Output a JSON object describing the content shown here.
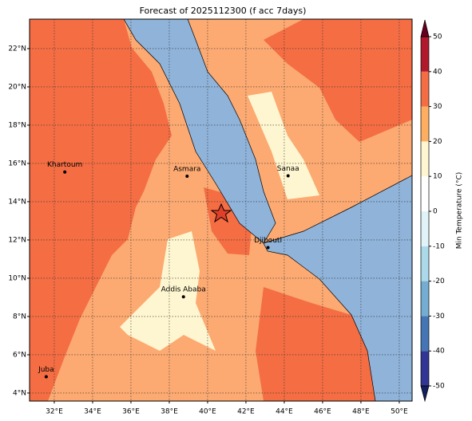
{
  "title": "Forecast of 2025112300 (f acc 7days)",
  "map": {
    "xlim": [
      30.71,
      50.67
    ],
    "ylim": [
      3.58,
      23.54
    ],
    "xticks": [
      {
        "value": 32,
        "label": "32°E"
      },
      {
        "value": 34,
        "label": "34°E"
      },
      {
        "value": 36,
        "label": "36°E"
      },
      {
        "value": 38,
        "label": "38°E"
      },
      {
        "value": 40,
        "label": "40°E"
      },
      {
        "value": 42,
        "label": "42°E"
      },
      {
        "value": 44,
        "label": "44°E"
      },
      {
        "value": 46,
        "label": "46°E"
      },
      {
        "value": 48,
        "label": "48°E"
      },
      {
        "value": 50,
        "label": "50°E"
      }
    ],
    "yticks": [
      {
        "value": 4,
        "label": "4°N"
      },
      {
        "value": 6,
        "label": "6°N"
      },
      {
        "value": 8,
        "label": "8°N"
      },
      {
        "value": 10,
        "label": "10°N"
      },
      {
        "value": 12,
        "label": "12°N"
      },
      {
        "value": 14,
        "label": "14°N"
      },
      {
        "value": 16,
        "label": "16°N"
      },
      {
        "value": 18,
        "label": "18°N"
      },
      {
        "value": 20,
        "label": "20°N"
      },
      {
        "value": 22,
        "label": "22°N"
      }
    ],
    "grid": true,
    "cities": [
      {
        "name": "Khartoum",
        "lon": 32.55,
        "lat": 15.55
      },
      {
        "name": "Asmara",
        "lon": 38.93,
        "lat": 15.33
      },
      {
        "name": "Sanaa",
        "lon": 44.2,
        "lat": 15.35
      },
      {
        "name": "Djibouti",
        "lon": 43.15,
        "lat": 11.6
      },
      {
        "name": "Addis Ababa",
        "lon": 38.74,
        "lat": 9.03
      },
      {
        "name": "Juba",
        "lon": 31.58,
        "lat": 4.85
      }
    ]
  },
  "colorbar": {
    "label": "Min Temperature (°C)",
    "levels": [
      -50,
      -40,
      -30,
      -20,
      -10,
      0,
      10,
      20,
      30,
      40,
      50
    ],
    "colors": [
      "#313695",
      "#4575b4",
      "#74add1",
      "#abd9e9",
      "#e0f3f8",
      "#ffffff",
      "#fef6d0",
      "#fdae61",
      "#f46d43",
      "#b2182b"
    ],
    "under_color": "#141f5e",
    "over_color": "#67001f",
    "ticks": [
      -50,
      -40,
      -30,
      -20,
      -10,
      0,
      10,
      20,
      30,
      40,
      50
    ]
  }
}
